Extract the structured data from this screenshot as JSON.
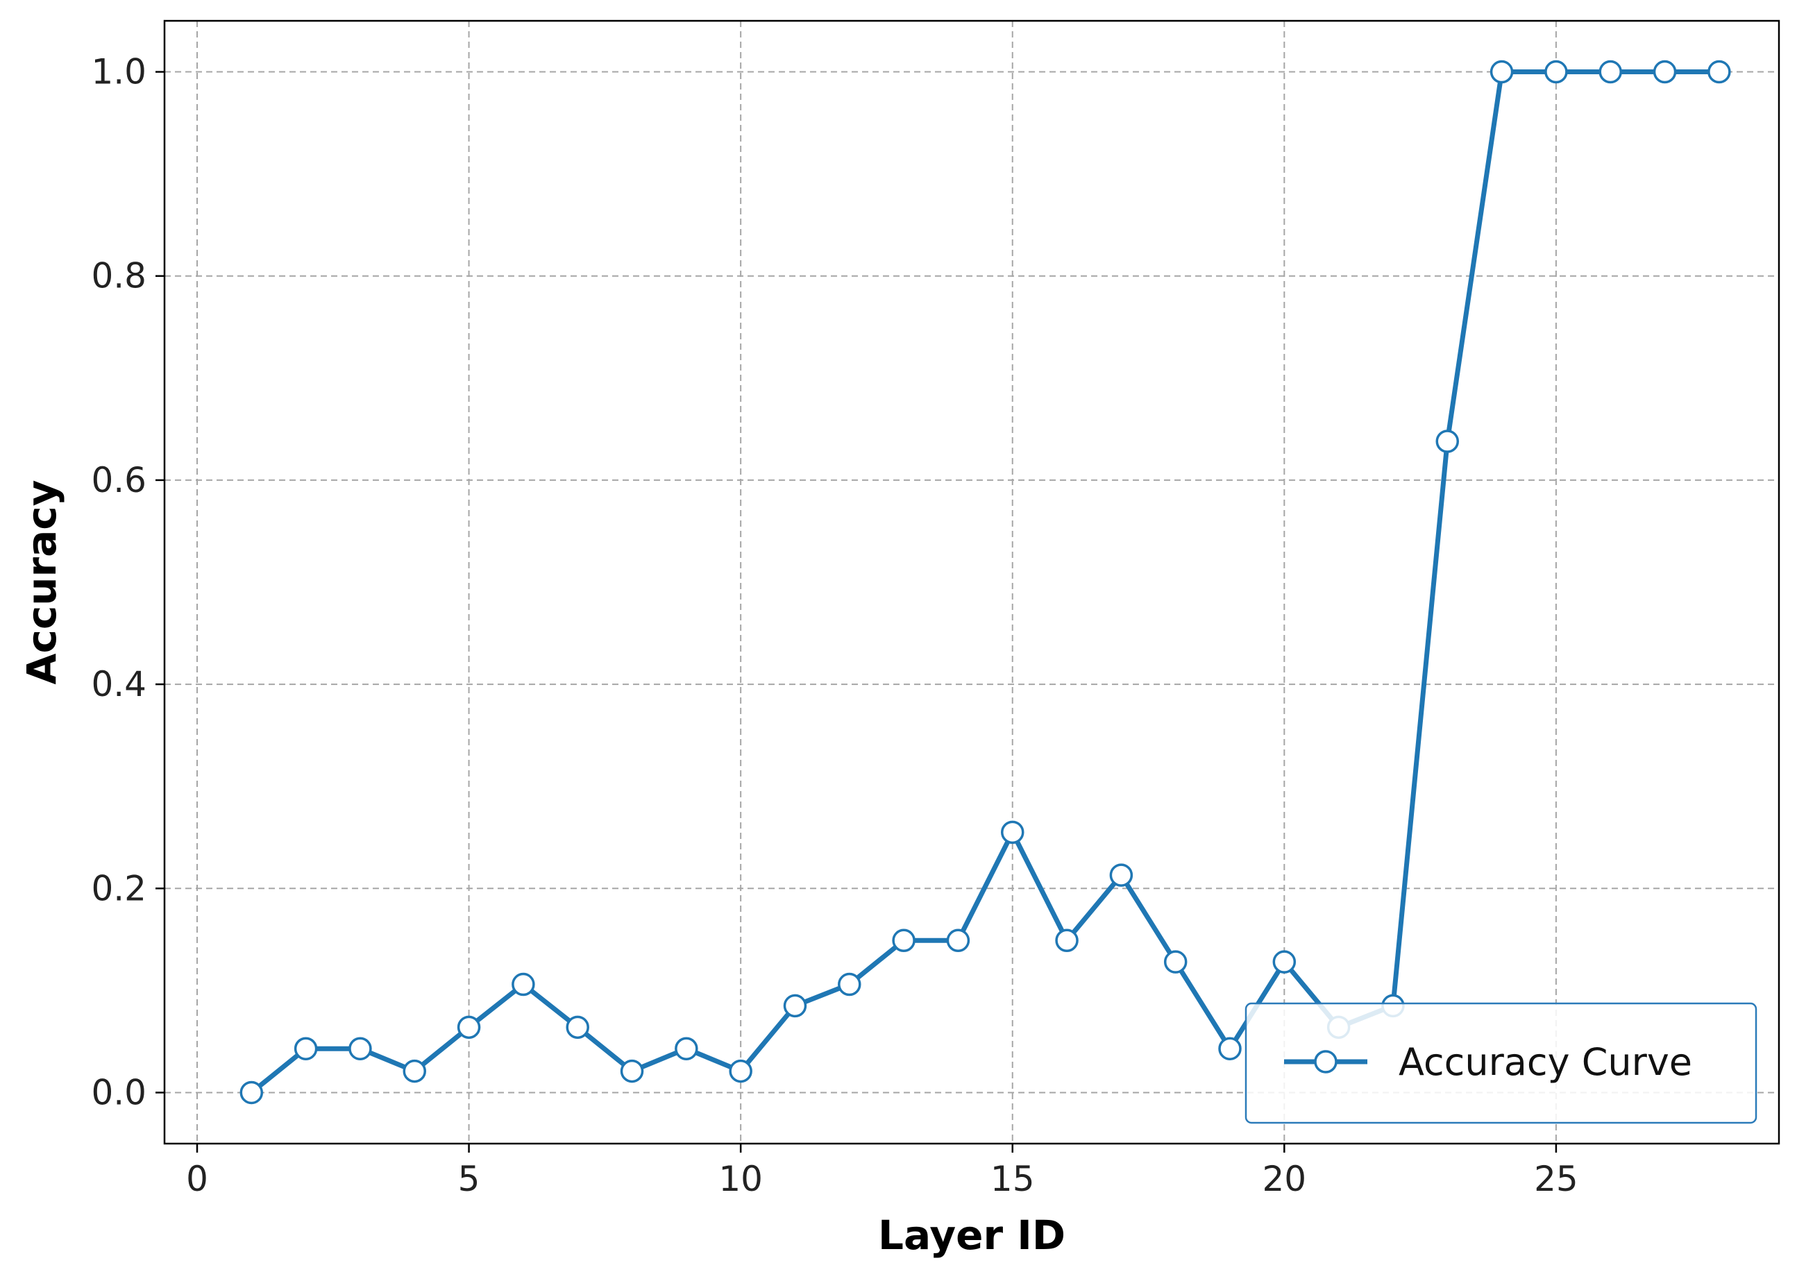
{
  "chart_data": {
    "type": "line",
    "title": "",
    "xlabel": "Layer ID",
    "ylabel": "Accuracy",
    "xlim": [
      -0.6,
      29.1
    ],
    "ylim": [
      -0.05,
      1.05
    ],
    "xticks": [
      0,
      5,
      10,
      15,
      20,
      25
    ],
    "yticks": [
      0.0,
      0.2,
      0.4,
      0.6,
      0.8,
      1.0
    ],
    "grid": true,
    "legend_position": "lower-right",
    "series": [
      {
        "name": "Accuracy Curve",
        "color": "#1f77b4",
        "marker": "hollow-circle",
        "x": [
          1,
          2,
          3,
          4,
          5,
          6,
          7,
          8,
          9,
          10,
          11,
          12,
          13,
          14,
          15,
          16,
          17,
          18,
          19,
          20,
          21,
          22,
          23,
          24,
          25,
          26,
          27,
          28
        ],
        "y": [
          0.0,
          0.043,
          0.043,
          0.021,
          0.064,
          0.106,
          0.064,
          0.021,
          0.043,
          0.021,
          0.085,
          0.106,
          0.149,
          0.149,
          0.255,
          0.149,
          0.213,
          0.128,
          0.043,
          0.128,
          0.064,
          0.085,
          0.638,
          1.0,
          1.0,
          1.0,
          1.0,
          1.0
        ]
      }
    ]
  }
}
